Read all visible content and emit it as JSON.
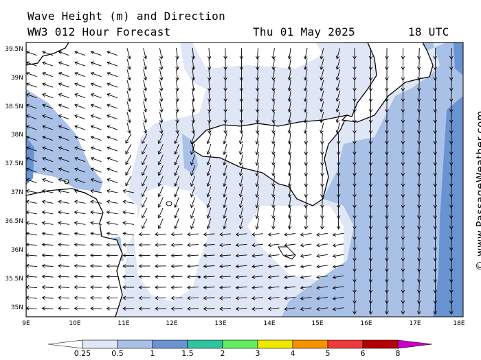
{
  "header": {
    "line1": "Wave Height (m) and Direction",
    "line2": "WW3 012 Hour Forecast",
    "date": "Thu 01 May 2025",
    "time": "18 UTC"
  },
  "credit": "© www.PassageWeather.com",
  "map": {
    "lat_labels": [
      "39.5N",
      "39N",
      "38.5N",
      "38N",
      "37.5N",
      "37N",
      "36.5N",
      "36N",
      "35.5N",
      "35N"
    ],
    "lon_labels": [
      "9E",
      "10E",
      "11E",
      "12E",
      "13E",
      "14E",
      "15E",
      "16E",
      "17E",
      "18E"
    ]
  },
  "legend": {
    "labels": [
      "0.25",
      "0.5",
      "1",
      "1.5",
      "2",
      "3",
      "4",
      "5",
      "6",
      "8"
    ],
    "colors": [
      "#ffffff",
      "#dfe6f6",
      "#a9c1e6",
      "#6a93d2",
      "#2ec4a0",
      "#62ee62",
      "#f2e600",
      "#f69200",
      "#ee3a3a",
      "#b40000",
      "#c800c8"
    ]
  },
  "colors": {
    "sea_light": "#dfe6f6",
    "sea_mid": "#a9c1e6",
    "sea_dark": "#6a93d2"
  }
}
